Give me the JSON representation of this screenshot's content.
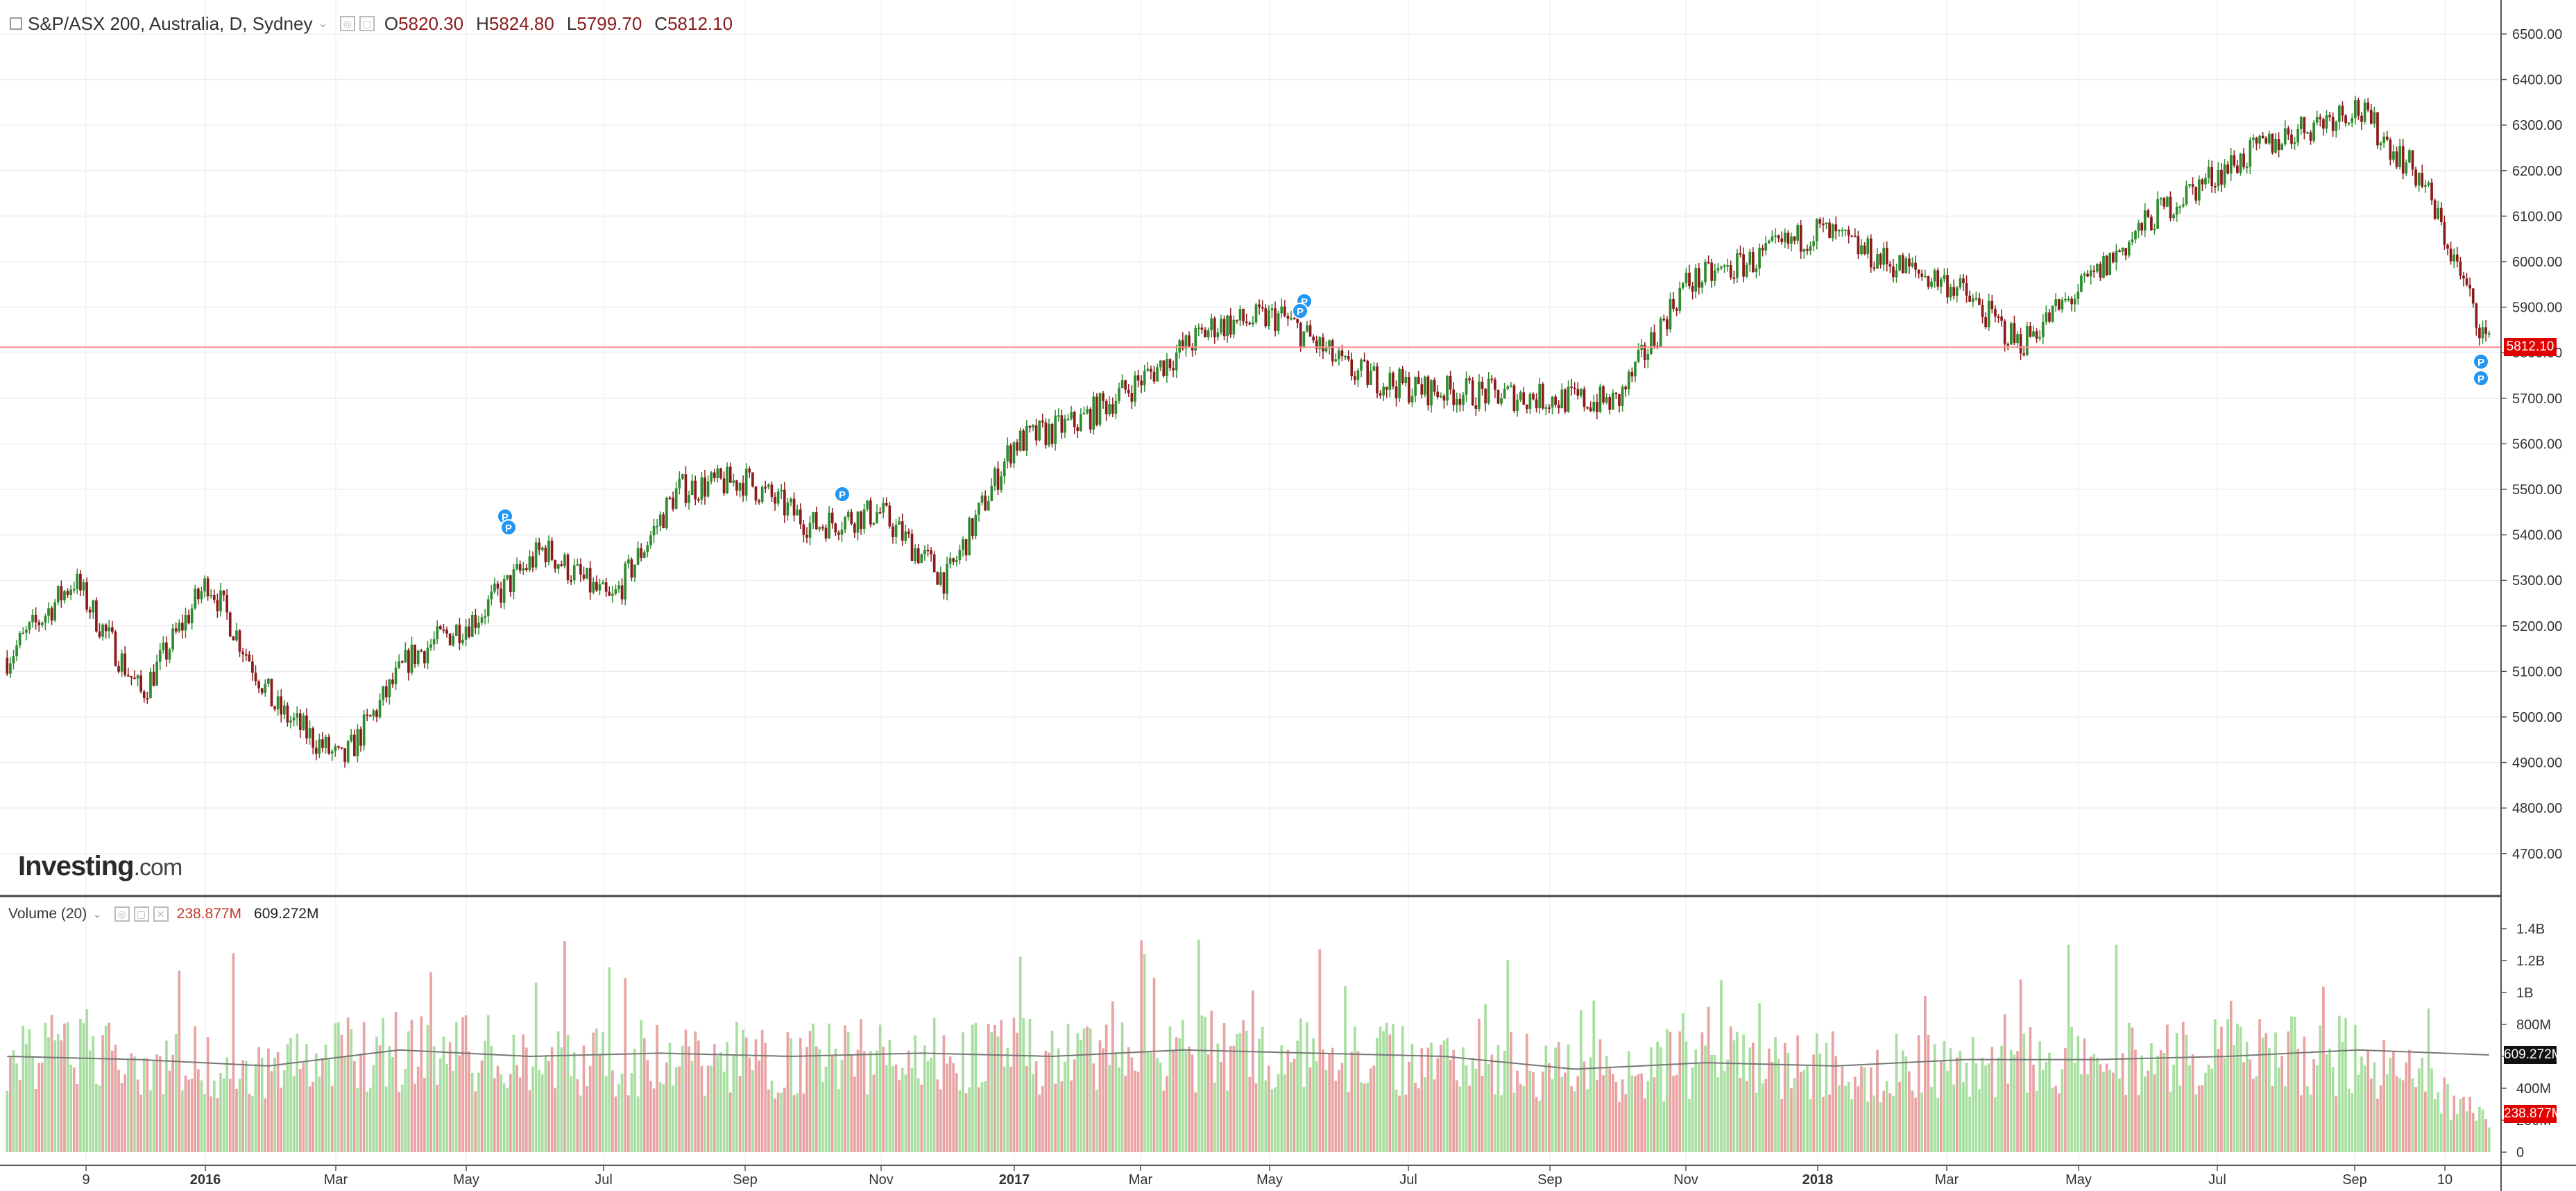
{
  "header": {
    "title": "S&P/ASX 200, Australia, D, Sydney",
    "ohlc": [
      {
        "label": "O",
        "value": "5820.30"
      },
      {
        "label": "H",
        "value": "5824.80"
      },
      {
        "label": "L",
        "value": "5799.70"
      },
      {
        "label": "C",
        "value": "5812.10"
      }
    ]
  },
  "volume_header": {
    "title": "Volume (20)",
    "value1": "238.877M",
    "value2": "609.272M"
  },
  "logo": {
    "brand": "Investing",
    "domain": ".com"
  },
  "price_axis": {
    "ticks": [
      "6500.00",
      "6400.00",
      "6300.00",
      "6200.00",
      "6100.00",
      "6000.00",
      "5900.00",
      "5800.00",
      "5700.00",
      "5600.00",
      "5500.00",
      "5400.00",
      "5300.00",
      "5200.00",
      "5100.00",
      "5000.00",
      "4900.00",
      "4800.00",
      "4700.00"
    ],
    "last_price_label": "5812.10"
  },
  "volume_axis": {
    "ticks": [
      "1.4B",
      "1.2B",
      "1B",
      "800M",
      "600M",
      "400M",
      "200M",
      "0"
    ],
    "ma_label": "609.272M",
    "volume_label": "238.877M"
  },
  "time_axis": {
    "labels": [
      "9",
      "2016",
      "Mar",
      "May",
      "Jul",
      "Sep",
      "Nov",
      "2017",
      "Mar",
      "May",
      "Jul",
      "Sep",
      "Nov",
      "2018",
      "Mar",
      "May",
      "Jul",
      "Sep",
      "10"
    ]
  },
  "colors": {
    "up": "#2e8b2e",
    "down": "#8b1a1a",
    "vol_up": "#a8dea0",
    "vol_down": "#e8a3a3",
    "last_price": "#e00000",
    "ma": "#777777",
    "marker": "#2196f3"
  },
  "chart_data": [
    {
      "type": "line",
      "title": "S&P/ASX 200, Australia, D, Sydney",
      "x": [
        "2015-09",
        "2015-10",
        "2015-11",
        "2015-12",
        "2016-01",
        "2016-02",
        "2016-03",
        "2016-04",
        "2016-05",
        "2016-06",
        "2016-07",
        "2016-08",
        "2016-09",
        "2016-10",
        "2016-11",
        "2016-12",
        "2017-01",
        "2017-02",
        "2017-03",
        "2017-04",
        "2017-05",
        "2017-06",
        "2017-07",
        "2017-08",
        "2017-09",
        "2017-10",
        "2017-11",
        "2017-12",
        "2018-01",
        "2018-02",
        "2018-03",
        "2018-04",
        "2018-05",
        "2018-06",
        "2018-07",
        "2018-08",
        "2018-09",
        "2018-10"
      ],
      "series": [
        {
          "name": "S&P/ASX 200",
          "values": [
            5130,
            5300,
            5050,
            5300,
            5020,
            4900,
            5130,
            5220,
            5370,
            5250,
            5500,
            5520,
            5420,
            5450,
            5300,
            5600,
            5650,
            5750,
            5860,
            5880,
            5760,
            5720,
            5710,
            5700,
            5690,
            5950,
            6000,
            6070,
            6000,
            5950,
            5820,
            5950,
            6100,
            6200,
            6280,
            6340,
            6180,
            5812
          ]
        }
      ],
      "ylim": [
        4650,
        6550
      ],
      "last_close": 5812.1
    },
    {
      "type": "bar",
      "title": "Volume (20)",
      "x": [
        "2015-09",
        "2015-11",
        "2016-01",
        "2016-03",
        "2016-05",
        "2016-07",
        "2016-09",
        "2016-11",
        "2017-01",
        "2017-03",
        "2017-05",
        "2017-07",
        "2017-09",
        "2017-11",
        "2018-01",
        "2018-03",
        "2018-05",
        "2018-07",
        "2018-09",
        "2018-10"
      ],
      "series": [
        {
          "name": "Volume",
          "values": [
            650,
            620,
            560,
            680,
            620,
            620,
            610,
            650,
            620,
            660,
            640,
            610,
            550,
            590,
            560,
            580,
            600,
            620,
            640,
            239
          ]
        },
        {
          "name": "MA 20",
          "values": [
            600,
            580,
            540,
            640,
            600,
            620,
            600,
            620,
            600,
            640,
            620,
            600,
            520,
            560,
            540,
            580,
            580,
            600,
            640,
            609
          ]
        }
      ],
      "ylim": [
        0,
        1400
      ],
      "y_unit": "M"
    }
  ]
}
